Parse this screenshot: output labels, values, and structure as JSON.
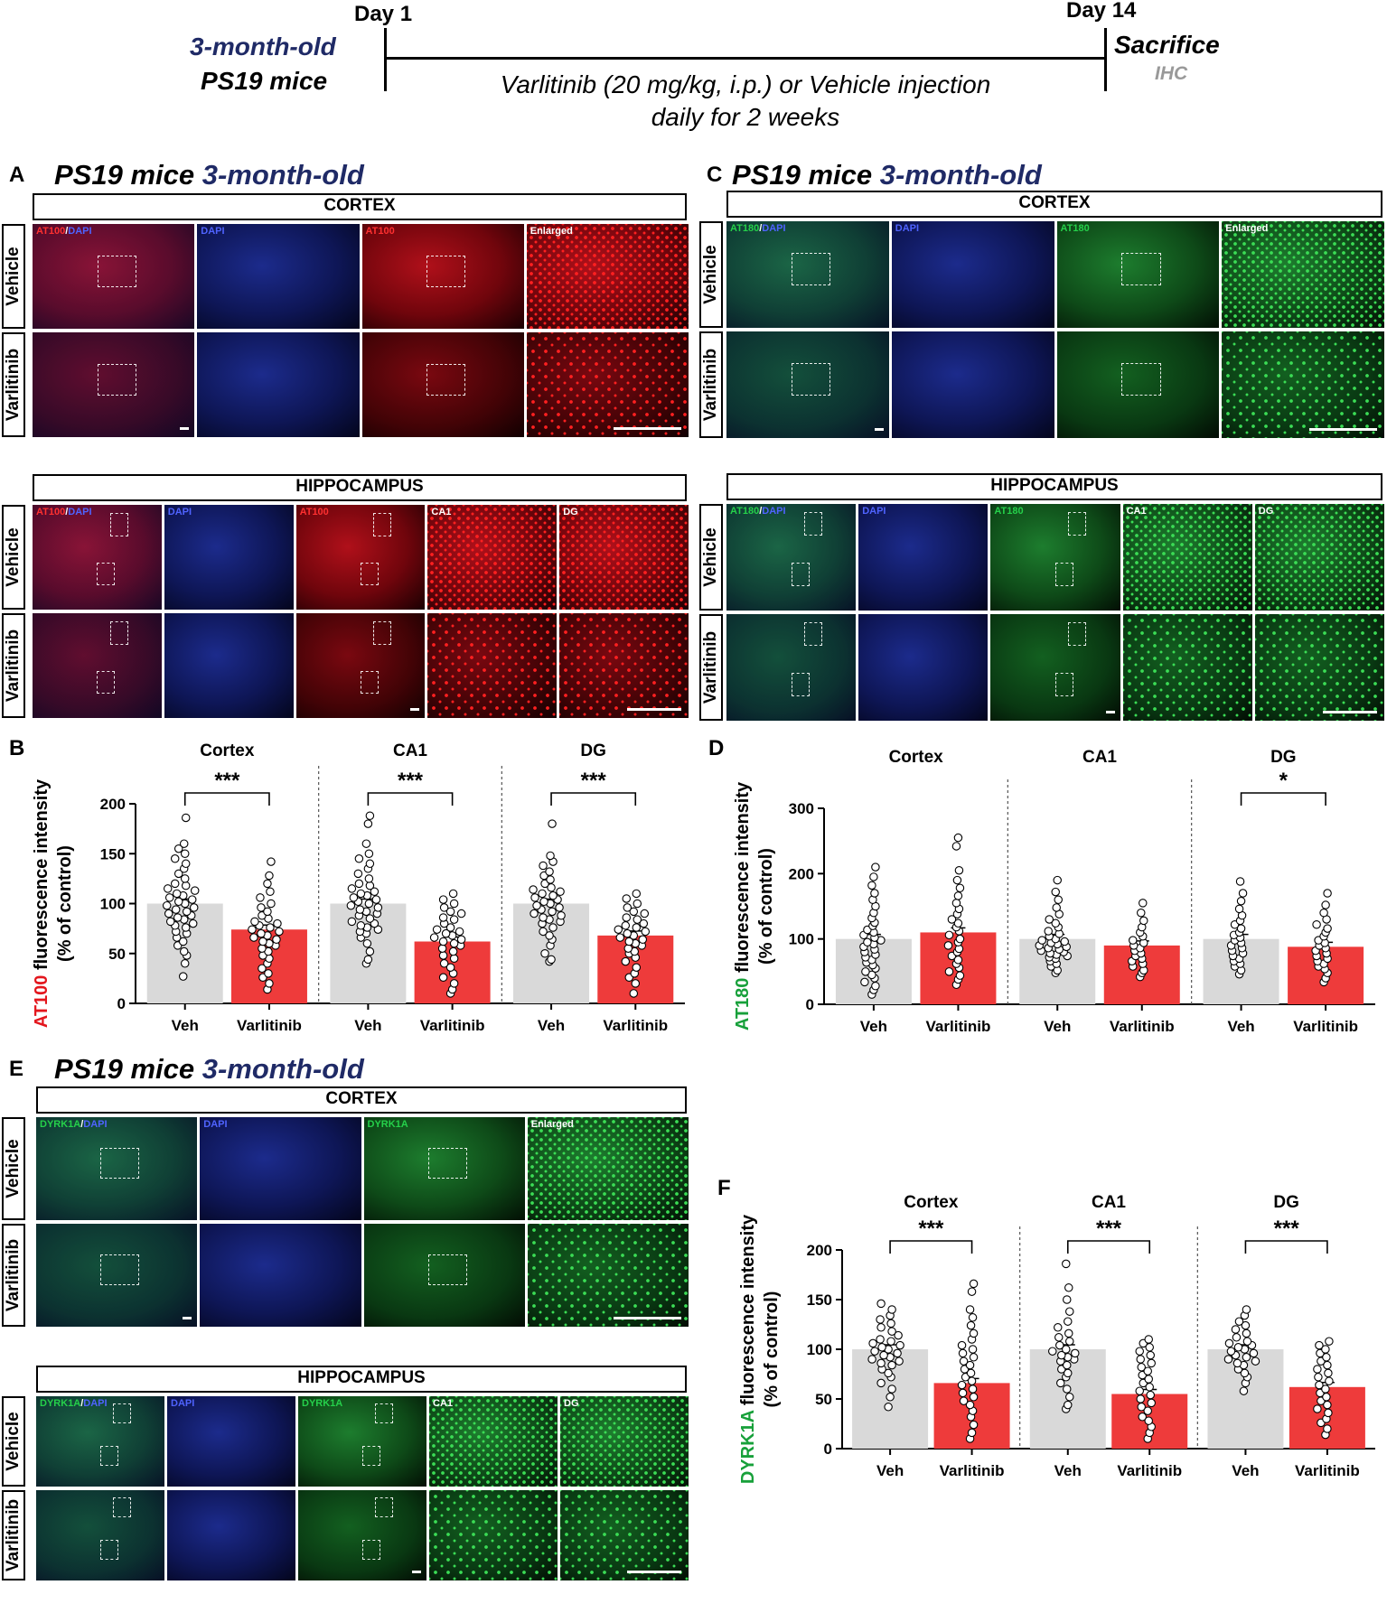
{
  "timeline": {
    "day1": "Day 1",
    "day14": "Day 14",
    "age": "3-month-old",
    "mice": "PS19 mice",
    "treatment_line1": "Varlitinib (20 mg/kg, i.p.) or Vehicle injection",
    "treatment_line2": "daily for 2 weeks",
    "sacrifice": "Sacrifice",
    "ihc": "IHC"
  },
  "panels": {
    "A": {
      "letter": "A",
      "title_a": "PS19 mice",
      "title_b": "3-month-old",
      "cortex": "CORTEX",
      "hippocampus": "HIPPOCAMPUS",
      "marker": "AT100",
      "dapi": "DAPI",
      "sep": "/",
      "enlarged": "Enlarged",
      "ca1": "CA1",
      "dg": "DG",
      "vehicle": "Vehicle",
      "varlitinib": "Varlitinib"
    },
    "C": {
      "letter": "C",
      "title_a": "PS19 mice",
      "title_b": "3-month-old",
      "cortex": "CORTEX",
      "hippocampus": "HIPPOCAMPUS",
      "marker": "AT180",
      "dapi": "DAPI",
      "sep": "/",
      "enlarged": "Enlarged",
      "ca1": "CA1",
      "dg": "DG",
      "vehicle": "Vehicle",
      "varlitinib": "Varlitinib"
    },
    "E": {
      "letter": "E",
      "title_a": "PS19 mice",
      "title_b": "3-month-old",
      "cortex": "CORTEX",
      "hippocampus": "HIPPOCAMPUS",
      "marker": "DYRK1A",
      "dapi": "DAPI",
      "sep": "/",
      "enlarged": "Enlarged",
      "ca1": "CA1",
      "dg": "DG",
      "vehicle": "Vehicle",
      "varlitinib": "Varlitinib"
    }
  },
  "chart_data": [
    {
      "panel": "B",
      "type": "bar",
      "ylabel_marker": "AT100",
      "ylabel_rest": " fluorescence intensity",
      "ylabel_line2": "(% of control)",
      "ylim": [
        0,
        200
      ],
      "yticks": [
        0,
        50,
        100,
        150,
        200
      ],
      "groups": [
        "Cortex",
        "CA1",
        "DG"
      ],
      "categories": [
        "Veh",
        "Varlitinib"
      ],
      "means": [
        [
          100,
          74
        ],
        [
          100,
          62
        ],
        [
          100,
          68
        ]
      ],
      "significance": [
        "***",
        "***",
        "***"
      ],
      "points": [
        [
          [
            186,
            160,
            155,
            150,
            145,
            140,
            135,
            130,
            125,
            120,
            118,
            115,
            113,
            110,
            108,
            106,
            104,
            102,
            100,
            98,
            96,
            94,
            92,
            90,
            88,
            86,
            84,
            82,
            80,
            78,
            76,
            72,
            70,
            66,
            62,
            58,
            52,
            48,
            40,
            27
          ],
          [
            142,
            128,
            120,
            112,
            106,
            100,
            96,
            92,
            88,
            85,
            82,
            80,
            78,
            76,
            74,
            72,
            70,
            68,
            66,
            64,
            62,
            60,
            58,
            55,
            52,
            48,
            45,
            40,
            35,
            30,
            26,
            20,
            14
          ]
        ],
        [
          [
            188,
            180,
            160,
            150,
            145,
            140,
            135,
            130,
            125,
            120,
            118,
            115,
            112,
            110,
            108,
            106,
            104,
            102,
            100,
            98,
            96,
            94,
            92,
            90,
            88,
            85,
            82,
            80,
            78,
            76,
            74,
            72,
            70,
            66,
            60,
            52,
            44,
            40
          ],
          [
            110,
            104,
            100,
            96,
            92,
            90,
            86,
            84,
            80,
            76,
            74,
            72,
            70,
            68,
            66,
            64,
            62,
            60,
            58,
            55,
            52,
            48,
            45,
            40,
            36,
            30,
            26,
            20,
            14,
            10
          ]
        ],
        [
          [
            180,
            148,
            142,
            138,
            132,
            128,
            124,
            120,
            116,
            114,
            112,
            110,
            108,
            106,
            104,
            102,
            100,
            98,
            96,
            94,
            92,
            90,
            88,
            86,
            84,
            82,
            80,
            76,
            72,
            68,
            64,
            58,
            50,
            44,
            42
          ],
          [
            110,
            105,
            100,
            96,
            92,
            90,
            86,
            84,
            80,
            78,
            76,
            74,
            72,
            70,
            68,
            66,
            64,
            62,
            60,
            58,
            55,
            52,
            50,
            46,
            42,
            36,
            30,
            26,
            20,
            10
          ]
        ]
      ]
    },
    {
      "panel": "D",
      "type": "bar",
      "ylabel_marker": "AT180",
      "ylabel_rest": " fluorescence intensity",
      "ylabel_line2": "(% of control)",
      "ylim": [
        0,
        300
      ],
      "yticks": [
        0,
        100,
        200,
        300
      ],
      "groups": [
        "Cortex",
        "CA1",
        "DG"
      ],
      "categories": [
        "Veh",
        "Varlitinib"
      ],
      "means": [
        [
          100,
          110
        ],
        [
          100,
          90
        ],
        [
          100,
          88
        ]
      ],
      "significance": [
        "",
        "",
        "*"
      ],
      "points": [
        [
          [
            210,
            195,
            182,
            170,
            160,
            150,
            140,
            132,
            125,
            120,
            114,
            110,
            106,
            102,
            98,
            95,
            92,
            88,
            84,
            80,
            76,
            72,
            68,
            64,
            60,
            55,
            50,
            45,
            40,
            34,
            28,
            22,
            15
          ],
          [
            255,
            242,
            205,
            190,
            178,
            166,
            155,
            146,
            138,
            130,
            124,
            118,
            112,
            106,
            100,
            95,
            90,
            85,
            80,
            74,
            68,
            62,
            56,
            50,
            44,
            38,
            30
          ]
        ],
        [
          [
            190,
            172,
            160,
            148,
            138,
            130,
            124,
            118,
            112,
            108,
            104,
            100,
            98,
            96,
            94,
            92,
            90,
            88,
            86,
            84,
            82,
            80,
            78,
            76,
            74,
            72,
            70,
            66,
            62,
            58,
            52,
            48
          ]
        ],
        [
          [
            188,
            170,
            158,
            146,
            136,
            128,
            122,
            116,
            110,
            106,
            102,
            98,
            94,
            90,
            86,
            82,
            78,
            74,
            70,
            66,
            62,
            58,
            52,
            46
          ]
        ]
      ],
      "points_extra": [
        [
          155,
          140,
          128,
          118,
          110,
          104,
          98,
          94,
          90,
          86,
          82,
          78,
          74,
          70,
          66,
          62,
          58,
          52,
          48,
          42
        ]
      ],
      "points_dg_var": [
        170,
        152,
        140,
        130,
        122,
        116,
        110,
        104,
        98,
        94,
        90,
        86,
        82,
        78,
        74,
        70,
        66,
        62,
        58,
        54,
        48,
        40,
        34
      ]
    },
    {
      "panel": "F",
      "type": "bar",
      "ylabel_marker": "DYRK1A",
      "ylabel_rest": " fluorescence intensity",
      "ylabel_line2": "(% of control)",
      "ylim": [
        0,
        200
      ],
      "yticks": [
        0,
        50,
        100,
        150,
        200
      ],
      "groups": [
        "Cortex",
        "CA1",
        "DG"
      ],
      "categories": [
        "Veh",
        "Varlitinib"
      ],
      "means": [
        [
          100,
          66
        ],
        [
          100,
          55
        ],
        [
          100,
          62
        ]
      ],
      "significance": [
        "***",
        "***",
        "***"
      ],
      "points": [
        [
          [
            146,
            140,
            134,
            130,
            126,
            122,
            118,
            114,
            110,
            108,
            106,
            104,
            102,
            100,
            98,
            96,
            94,
            92,
            90,
            88,
            86,
            84,
            80,
            76,
            72,
            66,
            60,
            52,
            42
          ],
          [
            166,
            158,
            140,
            132,
            124,
            116,
            110,
            104,
            100,
            96,
            92,
            88,
            84,
            80,
            76,
            72,
            68,
            64,
            60,
            56,
            52,
            48,
            44,
            38,
            32,
            24,
            16,
            10
          ]
        ],
        [
          [
            186,
            162,
            150,
            138,
            128,
            122,
            116,
            112,
            108,
            104,
            100,
            98,
            96,
            94,
            92,
            90,
            88,
            84,
            80,
            76,
            72,
            66,
            60,
            52,
            44,
            40
          ],
          [
            110,
            106,
            102,
            98,
            94,
            90,
            86,
            82,
            78,
            74,
            70,
            66,
            62,
            58,
            54,
            50,
            46,
            42,
            38,
            32,
            28,
            22,
            16,
            10
          ]
        ],
        [
          [
            140,
            134,
            128,
            124,
            120,
            116,
            112,
            108,
            106,
            104,
            102,
            100,
            98,
            96,
            94,
            92,
            90,
            88,
            86,
            84,
            80,
            76,
            72,
            66,
            58
          ],
          [
            108,
            104,
            100,
            96,
            92,
            88,
            84,
            80,
            76,
            72,
            68,
            64,
            60,
            56,
            52,
            48,
            44,
            40,
            36,
            30,
            26,
            20,
            14
          ]
        ]
      ]
    }
  ]
}
